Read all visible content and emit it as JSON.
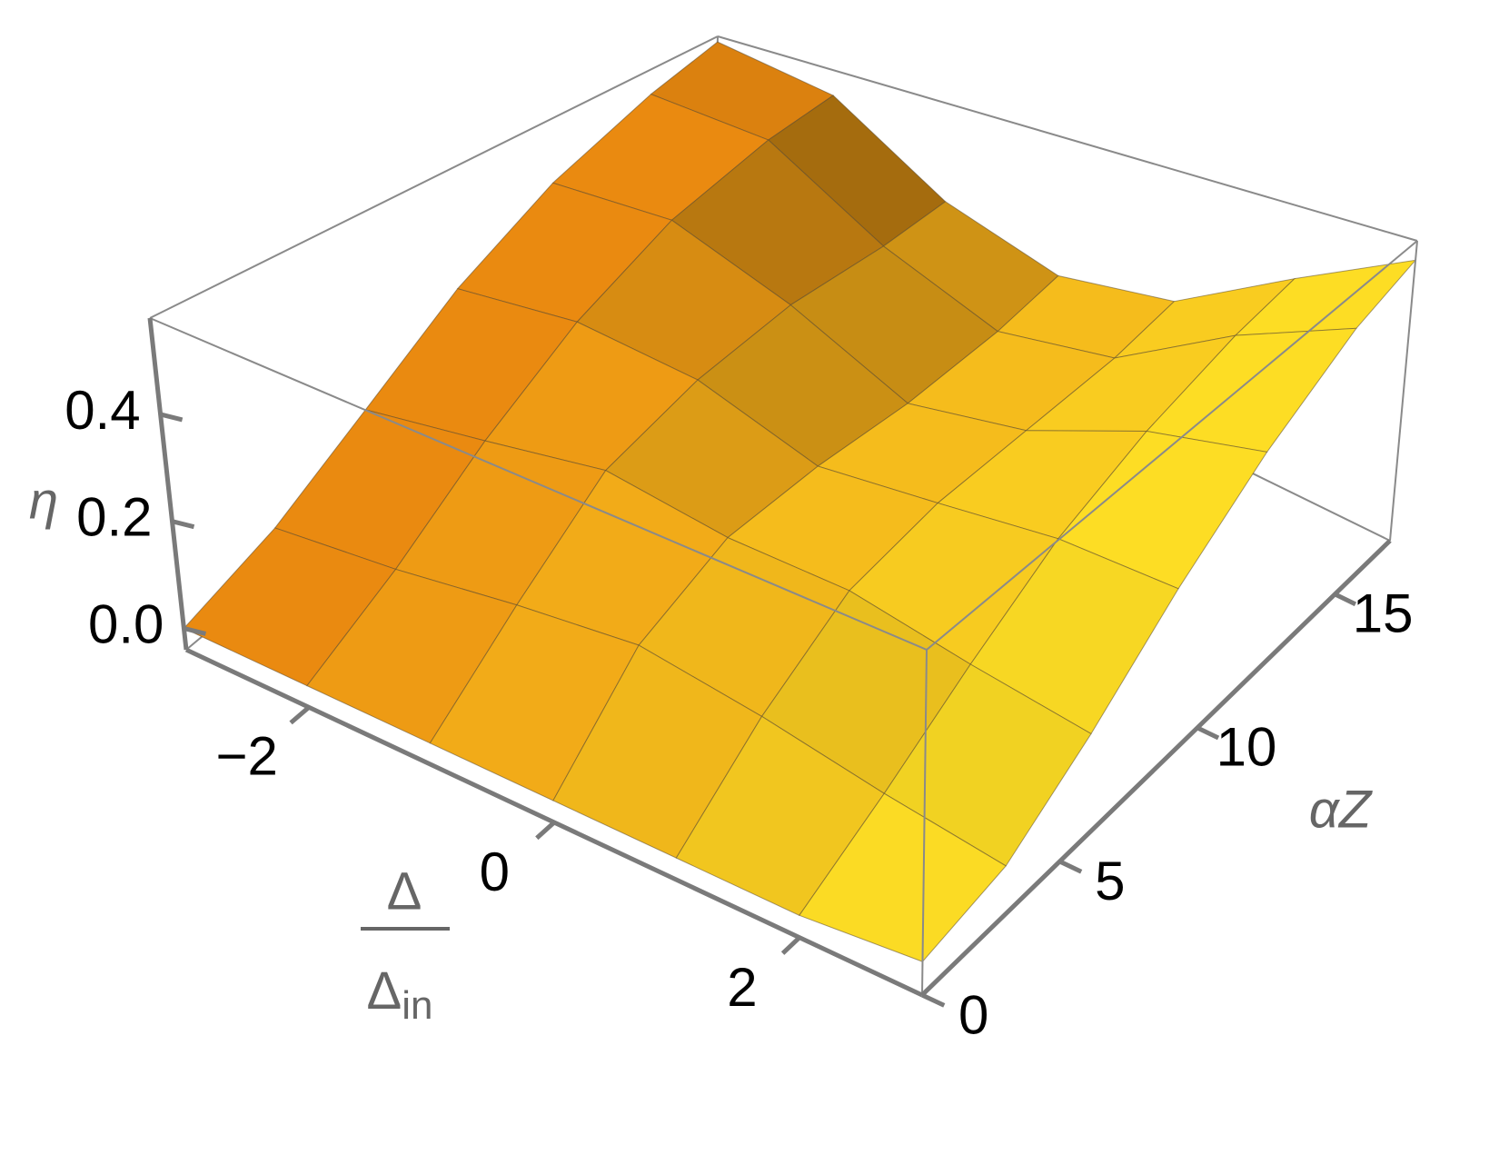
{
  "chart_data": {
    "type": "surface",
    "x": [
      -3,
      -2,
      -1,
      0,
      1,
      2,
      3
    ],
    "y": [
      0,
      3,
      6,
      9,
      12,
      15,
      17
    ],
    "z": [
      [
        0,
        0,
        0,
        0,
        0,
        0,
        0.02
      ],
      [
        0.05,
        0.08,
        0.12,
        0.15,
        0.12,
        0.08,
        0.05
      ],
      [
        0.15,
        0.2,
        0.25,
        0.22,
        0.22,
        0.18,
        0.15
      ],
      [
        0.28,
        0.32,
        0.3,
        0.22,
        0.25,
        0.28,
        0.28
      ],
      [
        0.4,
        0.42,
        0.32,
        0.2,
        0.25,
        0.35,
        0.4
      ],
      [
        0.5,
        0.48,
        0.3,
        0.2,
        0.25,
        0.4,
        0.5
      ],
      [
        0.56,
        0.5,
        0.3,
        0.22,
        0.27,
        0.42,
        0.54
      ]
    ],
    "xlim": [
      -3,
      3
    ],
    "ylim": [
      0,
      17
    ],
    "zlim": [
      -0.04,
      0.58
    ],
    "xticks": [
      {
        "value": -2,
        "label": "−2"
      },
      0,
      2
    ],
    "yticks": [
      0,
      5,
      10,
      15
    ],
    "zticks": [
      {
        "value": 0,
        "label": "0.0"
      },
      0.2,
      0.4
    ],
    "xlabel": {
      "numerator": "Δ",
      "denominator": "Δ",
      "subscript": "in"
    },
    "ylabel": "αZ",
    "zlabel": "η",
    "colormap": [
      "#e8820e",
      "#ffe526"
    ]
  }
}
